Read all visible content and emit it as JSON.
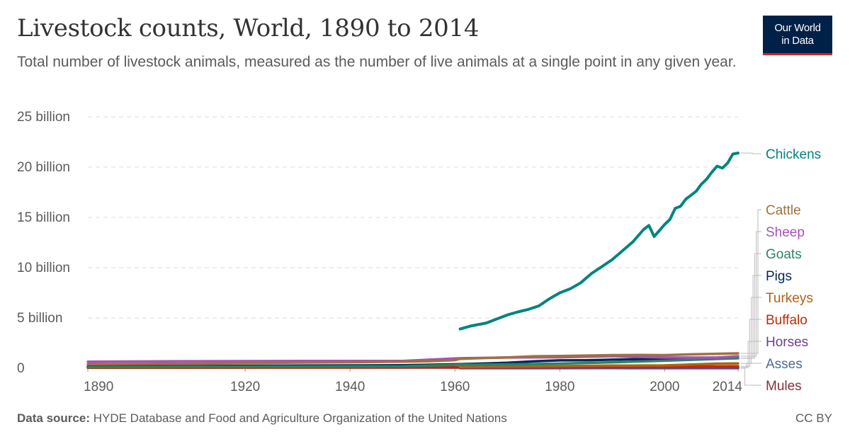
{
  "header": {
    "title": "Livestock counts, World, 1890 to 2014",
    "subtitle": "Total number of livestock animals, measured as the number of live animals at a single point in any given year.",
    "logo_line1": "Our World",
    "logo_line2": "in Data"
  },
  "footer": {
    "source_label": "Data source:",
    "source_text": "HYDE Database and Food and Agriculture Organization of the United Nations",
    "license": "CC BY"
  },
  "chart_data": {
    "type": "line",
    "title": "Livestock counts, World, 1890 to 2014",
    "xlim": [
      1890,
      2014
    ],
    "ylim": [
      0,
      25
    ],
    "y_unit_scale": 1000000000,
    "x_ticks": [
      1890,
      1920,
      1940,
      1960,
      1980,
      2000,
      2014
    ],
    "y_ticks": [
      {
        "value": 0,
        "label": "0"
      },
      {
        "value": 5,
        "label": "5 billion"
      },
      {
        "value": 10,
        "label": "10 billion"
      },
      {
        "value": 15,
        "label": "15 billion"
      },
      {
        "value": 20,
        "label": "20 billion"
      },
      {
        "value": 25,
        "label": "25 billion"
      }
    ],
    "grid": "horizontal dashed",
    "legend_placement": "right",
    "series": [
      {
        "name": "Chickens",
        "color": "#00847e",
        "x": [
          1961,
          1963,
          1966,
          1968,
          1970,
          1972,
          1974,
          1976,
          1978,
          1980,
          1982,
          1984,
          1986,
          1988,
          1990,
          1992,
          1994,
          1996,
          1997,
          1998,
          2000,
          2001,
          2002,
          2003,
          2004,
          2005,
          2006,
          2007,
          2008,
          2009,
          2010,
          2011,
          2012,
          2013,
          2014
        ],
        "y": [
          3.9,
          4.2,
          4.5,
          4.9,
          5.3,
          5.6,
          5.85,
          6.2,
          6.9,
          7.5,
          7.9,
          8.5,
          9.4,
          10.1,
          10.8,
          11.7,
          12.6,
          13.8,
          14.2,
          13.1,
          14.3,
          14.8,
          15.9,
          16.1,
          16.8,
          17.2,
          17.6,
          18.3,
          18.8,
          19.5,
          20.1,
          19.9,
          20.4,
          21.3,
          21.4
        ]
      },
      {
        "name": "Cattle",
        "color": "#a2703d",
        "x": [
          1890,
          1900,
          1910,
          1920,
          1930,
          1940,
          1950,
          1955,
          1960,
          1961,
          1965,
          1970,
          1975,
          1980,
          1985,
          1990,
          1995,
          2000,
          2005,
          2010,
          2014
        ],
        "y": [
          0.41,
          0.43,
          0.46,
          0.5,
          0.56,
          0.6,
          0.65,
          0.7,
          0.8,
          0.94,
          1.0,
          1.08,
          1.19,
          1.22,
          1.26,
          1.3,
          1.32,
          1.3,
          1.38,
          1.44,
          1.48
        ]
      },
      {
        "name": "Sheep",
        "color": "#a652ba",
        "x": [
          1890,
          1910,
          1930,
          1950,
          1961,
          1970,
          1980,
          1990,
          2000,
          2010,
          2014
        ],
        "y": [
          0.65,
          0.7,
          0.72,
          0.72,
          0.99,
          1.06,
          1.09,
          1.2,
          1.06,
          1.07,
          1.2
        ]
      },
      {
        "name": "Goats",
        "color": "#2c8465",
        "x": [
          1890,
          1910,
          1930,
          1950,
          1961,
          1970,
          1980,
          1990,
          2000,
          2010,
          2014
        ],
        "y": [
          0.12,
          0.14,
          0.16,
          0.2,
          0.35,
          0.38,
          0.46,
          0.59,
          0.75,
          0.92,
          1.0
        ]
      },
      {
        "name": "Pigs",
        "color": "#00295b",
        "x": [
          1890,
          1910,
          1930,
          1950,
          1961,
          1966,
          1970,
          1975,
          1980,
          1985,
          1990,
          1995,
          2000,
          2005,
          2010,
          2014
        ],
        "y": [
          0.18,
          0.21,
          0.26,
          0.3,
          0.41,
          0.47,
          0.54,
          0.69,
          0.78,
          0.79,
          0.85,
          0.9,
          0.9,
          0.95,
          0.97,
          0.99
        ]
      },
      {
        "name": "Turkeys",
        "color": "#b16214",
        "x": [
          1961,
          1970,
          1980,
          1990,
          2000,
          2010,
          2014
        ],
        "y": [
          0.13,
          0.16,
          0.21,
          0.26,
          0.28,
          0.46,
          0.47
        ]
      },
      {
        "name": "Buffalo",
        "color": "#be2a08",
        "x": [
          1890,
          1930,
          1961,
          1980,
          2000,
          2014
        ],
        "y": [
          0.05,
          0.06,
          0.09,
          0.12,
          0.16,
          0.2
        ]
      },
      {
        "name": "Horses",
        "color": "#6d3e91",
        "x": [
          1890,
          1930,
          1961,
          1980,
          2000,
          2014
        ],
        "y": [
          0.07,
          0.08,
          0.06,
          0.06,
          0.06,
          0.06
        ]
      },
      {
        "name": "Asses",
        "color": "#4c6a9c",
        "x": [
          1961,
          1990,
          2014
        ],
        "y": [
          0.04,
          0.04,
          0.04
        ]
      },
      {
        "name": "Mules",
        "color": "#883039",
        "x": [
          1961,
          1990,
          2014
        ],
        "y": [
          0.01,
          0.015,
          0.01
        ]
      }
    ]
  }
}
